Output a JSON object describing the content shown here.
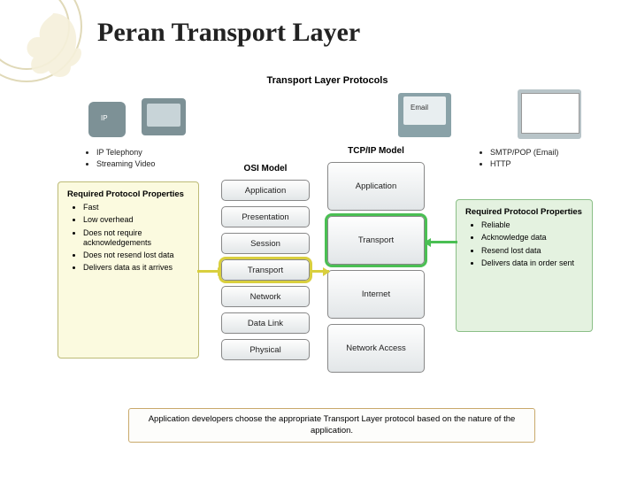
{
  "title": "Peran Transport Layer",
  "diagram_title": "Transport Layer Protocols",
  "colors": {
    "yellow_box_bg": "#fbfadf",
    "yellow_box_border": "#bdbb77",
    "green_box_bg": "#e4f2e0",
    "green_box_border": "#8bbf87",
    "yellow_hl": "#d9cf3e",
    "green_hl": "#4abf53",
    "deco_stroke": "#e0d9b8"
  },
  "left_bullets": [
    "IP Telephony",
    "Streaming Video"
  ],
  "right_bullets": [
    "SMTP/POP (Email)",
    "HTTP"
  ],
  "email_label": "Email",
  "yellow_box": {
    "header": "Required Protocol Properties",
    "items": [
      "Fast",
      "Low overhead",
      "Does not require acknowledgements",
      "Does not resend lost data",
      "Delivers data as it arrives"
    ]
  },
  "green_box": {
    "header": "Required Protocol Properties",
    "items": [
      "Reliable",
      "Acknowledge data",
      "Resend lost data",
      "Delivers data in order sent"
    ]
  },
  "osi": {
    "label": "OSI Model",
    "layers": [
      "Application",
      "Presentation",
      "Session",
      "Transport",
      "Network",
      "Data Link",
      "Physical"
    ],
    "highlight_index": 3
  },
  "tcpip": {
    "label": "TCP/IP Model",
    "layers": [
      "Application",
      "Transport",
      "Internet",
      "Network Access"
    ],
    "highlight_index": 1
  },
  "footer": "Application developers choose the appropriate Transport Layer protocol based on the nature of the application."
}
